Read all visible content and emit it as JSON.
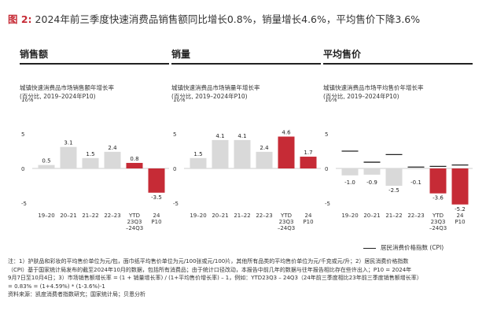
{
  "figure": {
    "label": "图 2:",
    "title": "2024年前三季度快速消费品销售额同比增长0.8%，销量增长4.6%，平均售价下降3.6%"
  },
  "chart_data": [
    {
      "type": "bar",
      "panel_title": "销售额",
      "subtitle_lines": [
        "城镇快速消费品市场销售额年增长率",
        "(百分比, 2019–2024年P10)"
      ],
      "ytick_labels": [
        "10%",
        "5",
        "0",
        "-5"
      ],
      "ylim": [
        -5,
        10
      ],
      "categories": [
        [
          "19–20"
        ],
        [
          "20–21"
        ],
        [
          "21–22"
        ],
        [
          "22–23"
        ],
        [
          "YTD",
          "23Q3",
          "–24Q3"
        ],
        [
          "24",
          "P10"
        ]
      ],
      "values": [
        0.5,
        3.1,
        1.5,
        2.4,
        0.8,
        -3.5
      ],
      "value_labels": [
        "0.5",
        "3.1",
        "1.5",
        "2.4",
        "0.8",
        "-3.5"
      ],
      "highlight": [
        false,
        false,
        false,
        false,
        true,
        true
      ]
    },
    {
      "type": "bar",
      "panel_title": "销量",
      "subtitle_lines": [
        "城镇快速消费品市场销量年增长率",
        "(百分比, 2019–2024年P10)"
      ],
      "ytick_labels": [
        "10%",
        "5",
        "0",
        "-5"
      ],
      "ylim": [
        -5,
        10
      ],
      "categories": [
        [
          "19–20"
        ],
        [
          "20–21"
        ],
        [
          "21–22"
        ],
        [
          "22–23"
        ],
        [
          "YTD",
          "23Q3",
          "–24Q3"
        ],
        [
          "24",
          "P10"
        ]
      ],
      "values": [
        1.5,
        4.1,
        4.1,
        2.4,
        4.6,
        1.7
      ],
      "value_labels": [
        "1.5",
        "4.1",
        "4.1",
        "2.4",
        "4.6",
        "1.7"
      ],
      "highlight": [
        false,
        false,
        false,
        false,
        true,
        true
      ]
    },
    {
      "type": "bar",
      "panel_title": "平均售价",
      "subtitle_lines": [
        "城镇快速消费品市场平均售价年增长率",
        "(百分比, 2019–2024年P10)"
      ],
      "ytick_labels": [
        "10%",
        "5",
        "0",
        "-5"
      ],
      "ylim": [
        -5,
        10
      ],
      "categories": [
        [
          "19–20"
        ],
        [
          "20–21"
        ],
        [
          "21–22"
        ],
        [
          "22–23"
        ],
        [
          "YTD",
          "23Q3",
          "–24Q3"
        ],
        [
          "24",
          "P10"
        ]
      ],
      "values": [
        -1.0,
        -0.9,
        -2.5,
        -0.1,
        -3.6,
        -5.2
      ],
      "value_labels": [
        "-1.0",
        "-0.9",
        "-2.5",
        "-0.1",
        "-3.6",
        "-5.2"
      ],
      "highlight": [
        false,
        false,
        false,
        false,
        true,
        true
      ],
      "cpi_values": [
        2.5,
        0.9,
        2.0,
        0.2,
        0.3,
        0.5
      ],
      "legend_label": "居民消费价格指数 (CPI)"
    }
  ],
  "colors": {
    "gray_bar": "#d9d9d9",
    "highlight_bar": "#c62b36",
    "accent": "#c62b36"
  },
  "notes": [
    "注：1）护肤品和彩妆的平均售价单位为元/包，面巾纸平均售价单位为元/100张或元/100片，其他所有品类的平均售价单位为元/千克或元/升；2）居民消费价格指数",
    "（CPI）基于国家统计局发布的截至2024年10月的数据，包括所有消费品；由于统计口径改动，本报告中前几年的数据与往年报告相比存在些许出入；P10 = 2024年",
    "9月7日至10月4日；3）市场销售额增长率 = (1 + 销量增长率) / (1+平均售价增长率) – 1，例如：YTD23Q3 – 24Q3（24年前三季度相比23年前三季度销售额增长率）",
    "= 0.83% = (1+4.59%) * (1-3.6%)-1",
    "资料来源：凯度消费者指数研究；国家统计局；贝恩分析"
  ]
}
